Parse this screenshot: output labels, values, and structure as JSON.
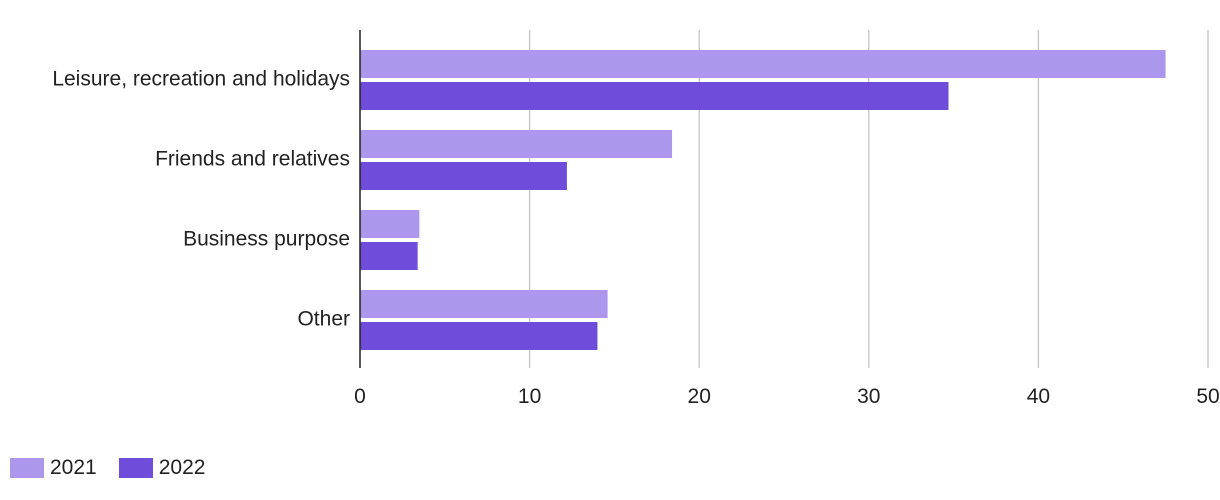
{
  "chart_data": {
    "type": "bar",
    "orientation": "horizontal",
    "title": "",
    "xlabel": "",
    "ylabel": "",
    "categories": [
      "Leisure, recreation and holidays",
      "Friends and relatives",
      "Business purpose",
      "Other"
    ],
    "series": [
      {
        "name": "2021",
        "color": "#ab97ec",
        "values": [
          47.5,
          18.4,
          3.5,
          14.6
        ]
      },
      {
        "name": "2022",
        "color": "#6f4cd9",
        "values": [
          34.7,
          12.2,
          3.4,
          14.0
        ]
      }
    ],
    "xlim": [
      0,
      50
    ],
    "xticks": [
      "0",
      "10",
      "20",
      "30",
      "40",
      "50"
    ],
    "grid": "vertical",
    "legend_position": "bottom-left"
  }
}
